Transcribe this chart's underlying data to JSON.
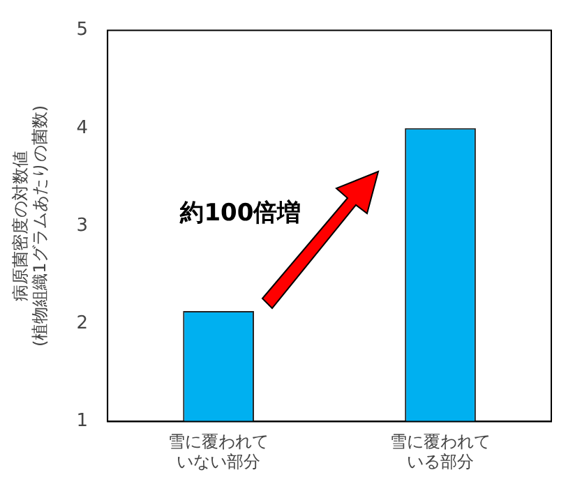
{
  "chart_data": {
    "type": "bar",
    "ylabel": "病原菌密度の対数値(植物組織1グラムあたりの菌数)",
    "categories": [
      "雪に覆われていない部分",
      "雪に覆われている部分"
    ],
    "values": [
      2.13,
      4.0
    ],
    "color": "#00b0f0",
    "ylim": [
      1,
      5
    ],
    "yticks": [
      1,
      2,
      3,
      4,
      5
    ],
    "grid": false,
    "legend": false,
    "annotations": [
      "約100倍増"
    ]
  }
}
